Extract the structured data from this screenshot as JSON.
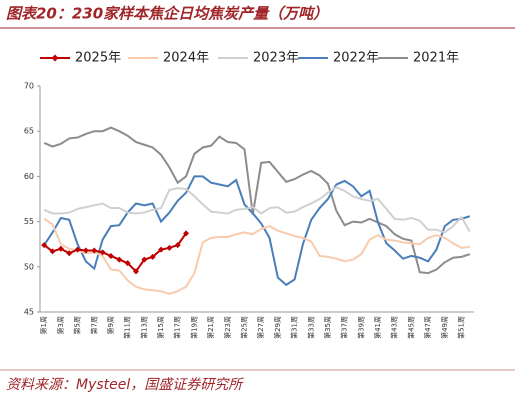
{
  "chart_data": {
    "type": "line",
    "title": "图表20：230家样本焦企日均焦炭产量（万吨）",
    "source": "资料来源：Mysteel，国盛证券研究所",
    "categories": [
      "第1周",
      null,
      "第3周",
      null,
      "第5周",
      null,
      "第7周",
      null,
      "第9周",
      null,
      "第11周",
      null,
      "第13周",
      null,
      "第15周",
      null,
      "第17周",
      null,
      "第19周",
      null,
      "第21周",
      null,
      "第23周",
      null,
      "第25周",
      null,
      "第27周",
      null,
      "第29周",
      null,
      "第31周",
      null,
      "第33周",
      null,
      "第35周",
      null,
      "第37周",
      null,
      "第39周",
      null,
      "第41周",
      null,
      "第43周",
      null,
      "第45周",
      null,
      "第47周",
      null,
      "第49周",
      null,
      "第51周",
      null
    ],
    "ylim": [
      45,
      70
    ],
    "yticks": [
      45,
      50,
      55,
      60,
      65,
      70
    ],
    "grid": false,
    "legend": "top",
    "series": [
      {
        "name": "2025年",
        "color": "#c00000",
        "marker": "diamond",
        "values": [
          52.4,
          51.7,
          52.0,
          51.5,
          51.9,
          51.8,
          51.8,
          51.6,
          51.2,
          50.8,
          50.4,
          49.5,
          50.8,
          51.1,
          51.9,
          52.1,
          52.4,
          53.7,
          null,
          null,
          null,
          null,
          null,
          null,
          null,
          null,
          null,
          null,
          null,
          null,
          null,
          null,
          null,
          null,
          null,
          null,
          null,
          null,
          null,
          null,
          null,
          null,
          null,
          null,
          null,
          null,
          null,
          null,
          null,
          null,
          null,
          null
        ]
      },
      {
        "name": "2024年",
        "color": "#f8cbad",
        "values": [
          55.3,
          54.7,
          52.5,
          52.0,
          51.8,
          51.5,
          51.6,
          51.2,
          49.7,
          49.6,
          48.5,
          47.8,
          47.5,
          47.4,
          47.3,
          47.0,
          47.3,
          47.8,
          49.3,
          52.7,
          53.2,
          53.3,
          53.3,
          53.6,
          53.8,
          53.6,
          54.2,
          54.5,
          54.0,
          53.7,
          53.4,
          53.2,
          52.8,
          51.2,
          51.1,
          50.9,
          50.6,
          50.8,
          51.4,
          53.0,
          53.5,
          53.0,
          52.9,
          52.7,
          52.6,
          52.5,
          53.2,
          53.5,
          53.2,
          52.6,
          52.1,
          52.2
        ]
      },
      {
        "name": "2023年",
        "color": "#d0d0d0",
        "values": [
          56.3,
          55.9,
          55.9,
          56.0,
          56.4,
          56.6,
          56.8,
          57.0,
          56.5,
          56.5,
          56.0,
          55.9,
          56.0,
          56.3,
          56.5,
          58.5,
          58.7,
          58.6,
          57.8,
          56.9,
          56.1,
          56.0,
          55.9,
          56.3,
          56.4,
          56.6,
          55.9,
          56.5,
          56.6,
          56.0,
          56.1,
          56.6,
          57.0,
          57.5,
          58.2,
          58.8,
          58.4,
          57.8,
          57.5,
          57.3,
          57.5,
          56.4,
          55.3,
          55.2,
          55.4,
          55.1,
          54.1,
          54.1,
          53.8,
          54.5,
          55.5,
          53.9
        ]
      },
      {
        "name": "2022年",
        "color": "#4a7ebb",
        "values": [
          52.4,
          53.8,
          55.4,
          55.2,
          52.5,
          50.6,
          49.8,
          53.0,
          54.5,
          54.6,
          56.0,
          57.0,
          56.8,
          57.0,
          55.0,
          56.0,
          57.3,
          58.2,
          60.0,
          60.0,
          59.3,
          59.1,
          58.9,
          59.6,
          56.9,
          55.9,
          54.8,
          53.2,
          48.8,
          48.0,
          48.6,
          52.5,
          55.2,
          56.5,
          57.5,
          59.1,
          59.5,
          58.9,
          57.8,
          58.4,
          54.9,
          52.6,
          51.8,
          50.9,
          51.2,
          51.0,
          50.6,
          51.9,
          54.5,
          55.2,
          55.3,
          55.6
        ]
      },
      {
        "name": "2021年",
        "color": "#8c8c8c",
        "values": [
          63.7,
          63.3,
          63.6,
          64.2,
          64.3,
          64.7,
          65.0,
          65.0,
          65.4,
          65.0,
          64.5,
          63.8,
          63.5,
          63.2,
          62.4,
          61.0,
          59.3,
          60.0,
          62.5,
          63.2,
          63.4,
          64.4,
          63.8,
          63.7,
          63.0,
          55.8,
          61.5,
          61.6,
          60.5,
          59.4,
          59.7,
          60.2,
          60.6,
          60.1,
          59.2,
          56.2,
          54.6,
          55.0,
          54.9,
          55.3,
          54.9,
          54.5,
          53.6,
          53.1,
          52.9,
          49.4,
          49.3,
          49.7,
          50.5,
          51.0,
          51.1,
          51.4
        ]
      }
    ]
  }
}
